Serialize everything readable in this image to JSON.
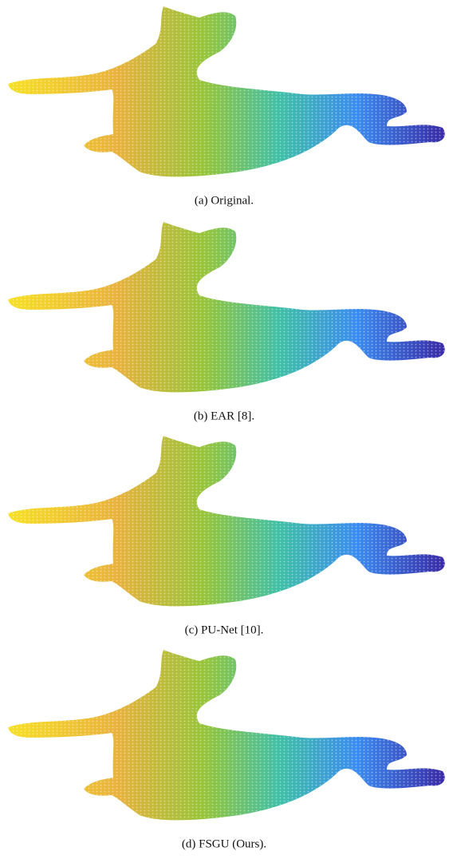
{
  "figure": {
    "subfigures": [
      {
        "caption": "(a) Original."
      },
      {
        "caption": "(b) EAR [8]."
      },
      {
        "caption": "(c) PU-Net [10]."
      },
      {
        "caption": "(d) FSGU (Ours)."
      }
    ]
  }
}
